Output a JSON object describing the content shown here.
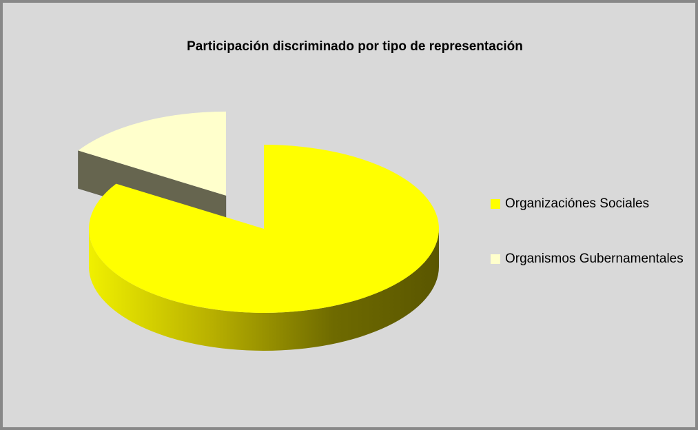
{
  "chart_data": {
    "type": "pie",
    "title": "Participación discriminado por tipo de representación",
    "categories": [
      "Organizaciónes Sociales",
      "Organismos Gubernamentales"
    ],
    "values": [
      84,
      16
    ],
    "colors": [
      "#ffff00",
      "#ffffcc"
    ],
    "legend": "right"
  }
}
